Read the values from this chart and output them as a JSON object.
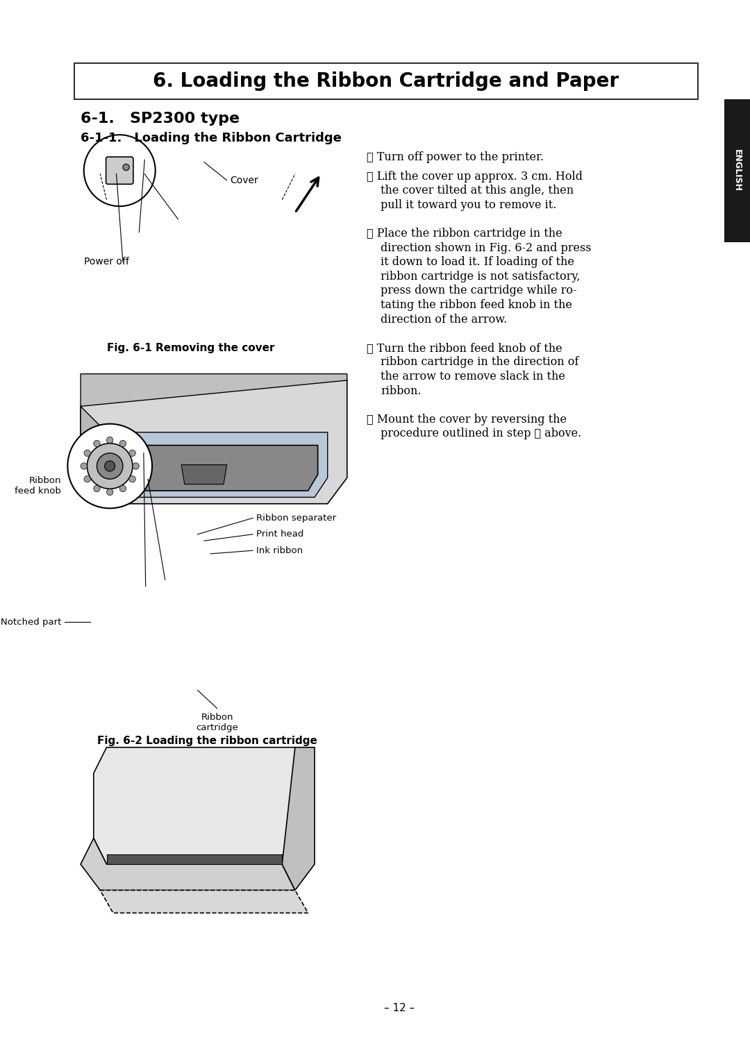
{
  "page_bg": "#ffffff",
  "title": "6. Loading the Ribbon Cartridge and Paper",
  "section": "6-1. SP2300 type",
  "subsection": "6-1-1. Loading the Ribbon Cartridge",
  "english_tab_bg": "#1a1a1a",
  "english_tab_text": "ENGLISH",
  "step1": "① Turn off power to the printer.",
  "step2_line1": "② Lift the cover up approx. 3 cm. Hold",
  "step2_line2": "the cover tilted at this angle, then",
  "step2_line3": "pull it toward you to remove it.",
  "step3_line1": "③ Place the ribbon cartridge in the",
  "step3_line2": "direction shown in Fig. 6-2 and press",
  "step3_line3": "it down to load it. If loading of the",
  "step3_line4": "ribbon cartridge is not satisfactory,",
  "step3_line5": "press down the cartridge while ro-",
  "step3_line6": "tating the ribbon feed knob in the",
  "step3_line7": "direction of the arrow.",
  "step4_line1": "④ Turn the ribbon feed knob of the",
  "step4_line2": "ribbon cartridge in the direction of",
  "step4_line3": "the arrow to remove slack in the",
  "step4_line4": "ribbon.",
  "step5_line1": "⑤ Mount the cover by reversing the",
  "step5_line2": "procedure outlined in step ② above.",
  "fig1_caption": "Fig. 6-1 Removing the cover",
  "fig2_caption": "Fig. 6-2 Loading the ribbon cartridge",
  "label_cover": "Cover",
  "label_power_off": "Power off",
  "label_ribbon_sep": "Ribbon separater",
  "label_print_head": "Print head",
  "label_ink_ribbon": "Ink ribbon",
  "label_ribbon_feed": "Ribbon\nfeed knob",
  "label_notched": "Notched part",
  "label_ribbon_cart": "Ribbon\ncartridge",
  "page_number": "– 12 –"
}
